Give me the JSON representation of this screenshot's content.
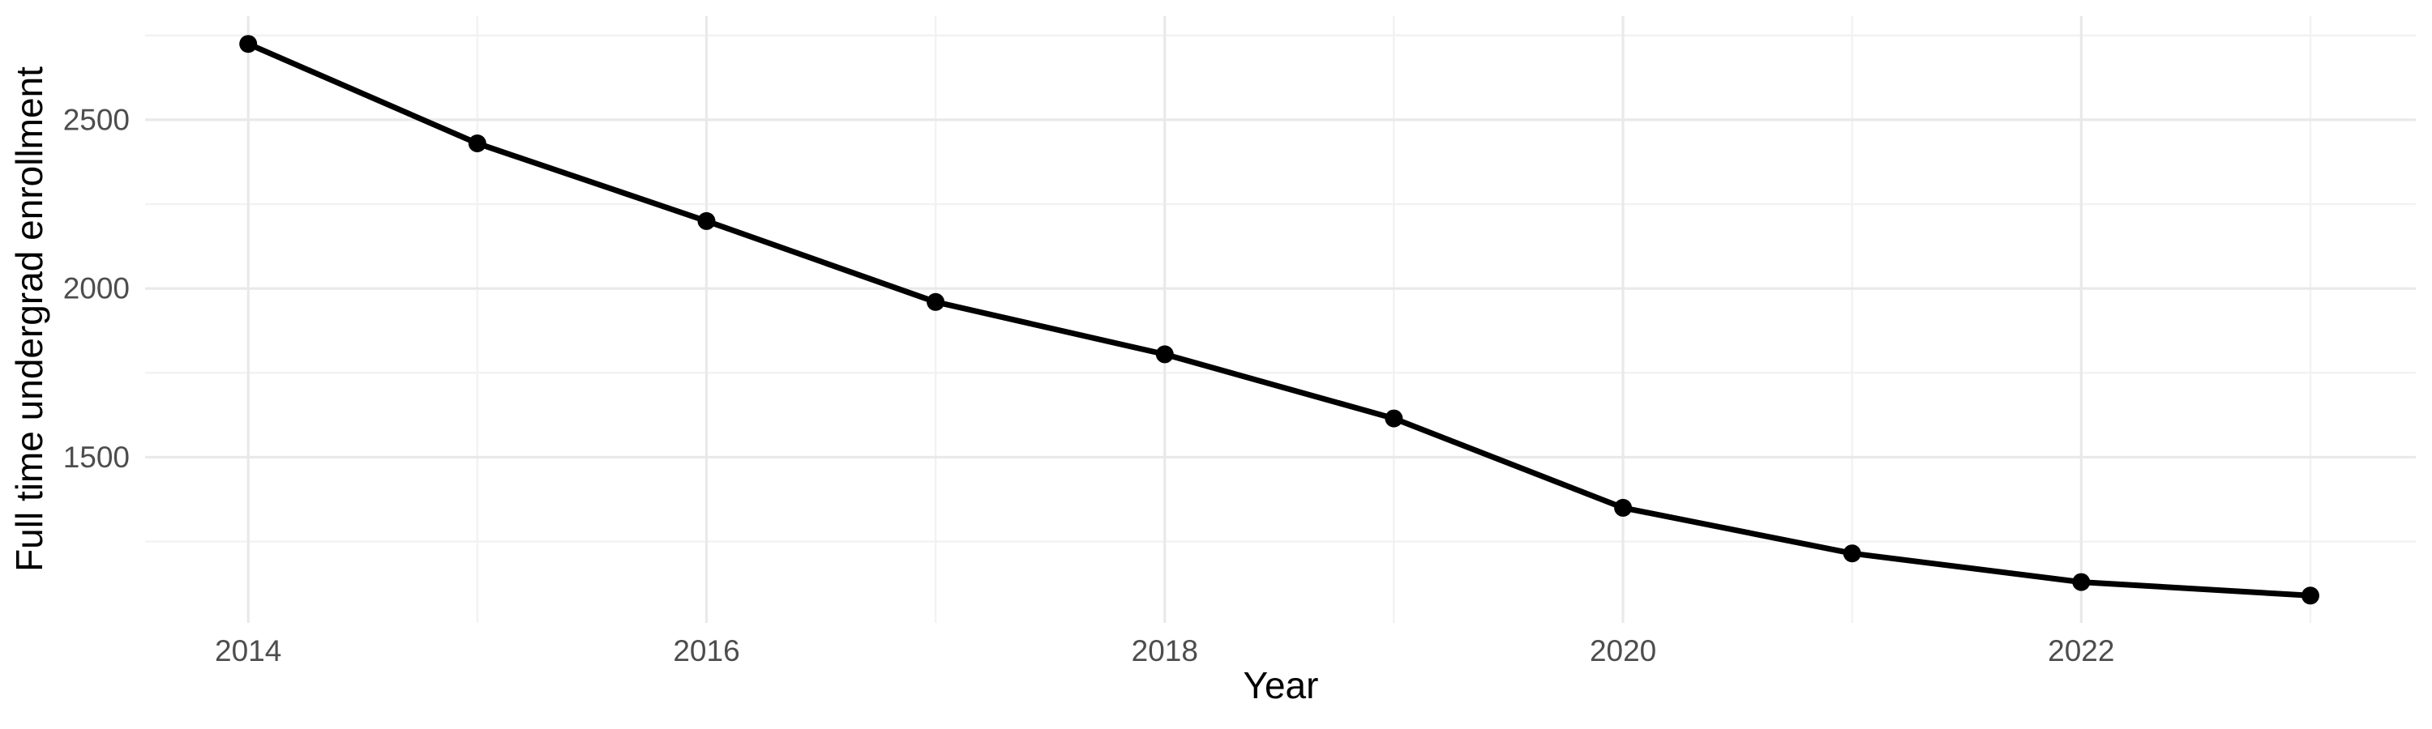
{
  "chart_data": {
    "type": "line",
    "title": "",
    "xlabel": "Year",
    "ylabel": "Full time undergrad enrollment",
    "x": [
      2014,
      2015,
      2016,
      2017,
      2018,
      2019,
      2020,
      2021,
      2022,
      2023
    ],
    "values": [
      2725,
      2430,
      2200,
      1960,
      1805,
      1615,
      1350,
      1215,
      1130,
      1090
    ],
    "x_ticks": [
      2014,
      2016,
      2018,
      2020,
      2022
    ],
    "y_ticks": [
      1500,
      2000,
      2500
    ],
    "x_minor_breaks": [
      2015,
      2017,
      2019,
      2021,
      2023
    ],
    "y_minor_breaks": [
      1250,
      1750,
      2250,
      2750
    ],
    "xlim": [
      2013.55,
      2023.46
    ],
    "ylim": [
      1009,
      2807
    ],
    "grid": "on",
    "legend": "none",
    "marker": "point",
    "colors": {
      "line": "#000000",
      "point": "#000000",
      "grid_major": "#E9E9E9",
      "grid_minor": "#F2F2F2",
      "tick_label": "#4D4D4D",
      "axis_title": "#000000",
      "background": "#FFFFFF"
    }
  }
}
